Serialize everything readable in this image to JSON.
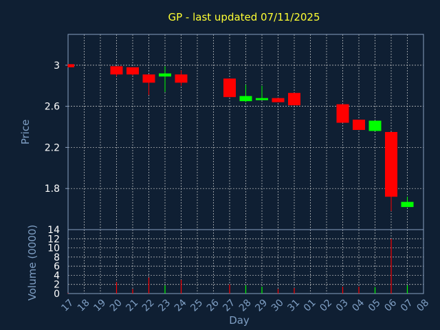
{
  "chart_data": {
    "type": "candlestick",
    "title": "GP - last updated 07/11/2025",
    "xlabel": "Day",
    "ylabel_price": "Price",
    "ylabel_volume": "Volume (0000)",
    "x_ticks": [
      "17",
      "18",
      "19",
      "20",
      "21",
      "22",
      "23",
      "24",
      "25",
      "26",
      "27",
      "28",
      "29",
      "30",
      "31",
      "01",
      "02",
      "03",
      "04",
      "05",
      "06",
      "07",
      "08"
    ],
    "price_ylim": [
      1.4,
      3.3
    ],
    "price_ticks": [
      "1.8",
      "2.2",
      "2.6",
      "3"
    ],
    "volume_ylim": [
      0,
      14
    ],
    "volume_ticks": [
      "0",
      "2",
      "4",
      "6",
      "8",
      "10",
      "12",
      "14"
    ],
    "grid": true,
    "up_color": "#00ff00",
    "down_color": "#ff0000",
    "candles": [
      {
        "day": "17",
        "open": 3.01,
        "high": 3.01,
        "low": 2.98,
        "close": 2.98,
        "volume": 0.1
      },
      {
        "day": "20",
        "open": 2.99,
        "high": 2.99,
        "low": 2.89,
        "close": 2.91,
        "volume": 2.5
      },
      {
        "day": "21",
        "open": 2.98,
        "high": 2.98,
        "low": 2.9,
        "close": 2.91,
        "volume": 1.0
      },
      {
        "day": "22",
        "open": 2.91,
        "high": 2.91,
        "low": 2.71,
        "close": 2.83,
        "volume": 3.5
      },
      {
        "day": "23",
        "open": 2.89,
        "high": 2.99,
        "low": 2.74,
        "close": 2.92,
        "volume": 1.8
      },
      {
        "day": "24",
        "open": 2.91,
        "high": 2.95,
        "low": 2.8,
        "close": 2.83,
        "volume": 3.0
      },
      {
        "day": "27",
        "open": 2.87,
        "high": 2.87,
        "low": 2.69,
        "close": 2.69,
        "volume": 2.0
      },
      {
        "day": "28",
        "open": 2.65,
        "high": 2.81,
        "low": 2.64,
        "close": 2.7,
        "volume": 1.8
      },
      {
        "day": "29",
        "open": 2.66,
        "high": 2.8,
        "low": 2.66,
        "close": 2.68,
        "volume": 1.5
      },
      {
        "day": "30",
        "open": 2.68,
        "high": 2.68,
        "low": 2.64,
        "close": 2.64,
        "volume": 1.0
      },
      {
        "day": "31",
        "open": 2.73,
        "high": 2.73,
        "low": 2.61,
        "close": 2.61,
        "volume": 1.2
      },
      {
        "day": "03",
        "open": 2.62,
        "high": 2.62,
        "low": 2.44,
        "close": 2.44,
        "volume": 1.5
      },
      {
        "day": "04",
        "open": 2.47,
        "high": 2.47,
        "low": 2.37,
        "close": 2.37,
        "volume": 1.5
      },
      {
        "day": "05",
        "open": 2.36,
        "high": 2.46,
        "low": 2.36,
        "close": 2.46,
        "volume": 1.4
      },
      {
        "day": "06",
        "open": 2.35,
        "high": 2.35,
        "low": 1.58,
        "close": 1.72,
        "volume": 12.0
      },
      {
        "day": "07",
        "open": 1.62,
        "high": 1.72,
        "low": 1.62,
        "close": 1.67,
        "volume": 1.8
      }
    ]
  }
}
